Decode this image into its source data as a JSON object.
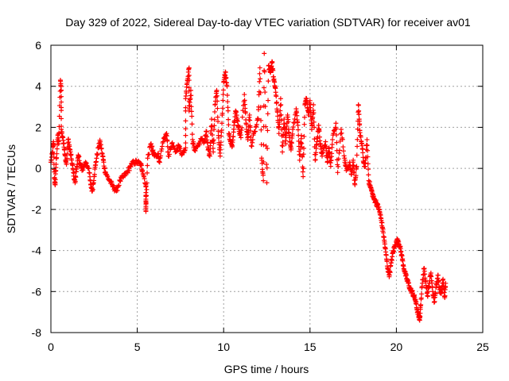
{
  "chart_data": {
    "type": "scatter",
    "title": "Day 329 of 2022, Sidereal Day-to-day VTEC variation (SDTVAR) for receiver av01",
    "xlabel": "GPS time / hours",
    "ylabel": "SDTVAR / TECUs",
    "xlim": [
      0,
      25
    ],
    "ylim": [
      -8,
      6
    ],
    "xticks": [
      0,
      5,
      10,
      15,
      20,
      25
    ],
    "yticks": [
      -8,
      -6,
      -4,
      -2,
      0,
      2,
      4,
      6
    ],
    "xtick_labels": [
      "0",
      "5",
      "10",
      "15",
      "20",
      "25"
    ],
    "ytick_labels": [
      "-8",
      "-6",
      "-4",
      "-2",
      "0",
      "2",
      "4",
      "6"
    ],
    "grid": true,
    "marker": "plus",
    "color": "#ff0000",
    "series": [
      {
        "name": "av01",
        "points": [
          [
            0.0,
            0.3
          ],
          [
            0.1,
            0.8
          ],
          [
            0.15,
            1.3
          ],
          [
            0.2,
            -0.5
          ],
          [
            0.25,
            -0.8
          ],
          [
            0.3,
            0.2
          ],
          [
            0.4,
            1.6
          ],
          [
            0.45,
            1.2
          ],
          [
            0.55,
            4.3
          ],
          [
            0.6,
            3.8
          ],
          [
            0.6,
            1.9
          ],
          [
            0.7,
            1.5
          ],
          [
            0.8,
            0.7
          ],
          [
            0.9,
            0.2
          ],
          [
            1.0,
            1.4
          ],
          [
            1.1,
            0.9
          ],
          [
            1.2,
            0.4
          ],
          [
            1.3,
            -0.2
          ],
          [
            1.4,
            -0.7
          ],
          [
            1.5,
            0.1
          ],
          [
            1.6,
            0.6
          ],
          [
            1.7,
            0.2
          ],
          [
            1.8,
            -0.1
          ],
          [
            2.0,
            0.3
          ],
          [
            2.2,
            0.0
          ],
          [
            2.3,
            -0.8
          ],
          [
            2.4,
            -1.1
          ],
          [
            2.5,
            -0.4
          ],
          [
            2.6,
            0.3
          ],
          [
            2.75,
            1.0
          ],
          [
            2.85,
            1.3
          ],
          [
            3.0,
            0.6
          ],
          [
            3.1,
            0.0
          ],
          [
            3.2,
            -0.3
          ],
          [
            3.4,
            -0.6
          ],
          [
            3.6,
            -0.9
          ],
          [
            3.8,
            -1.1
          ],
          [
            4.0,
            -0.6
          ],
          [
            4.2,
            -0.4
          ],
          [
            4.4,
            -0.2
          ],
          [
            4.6,
            0.1
          ],
          [
            4.8,
            0.3
          ],
          [
            5.0,
            0.3
          ],
          [
            5.2,
            0.2
          ],
          [
            5.3,
            -0.1
          ],
          [
            5.5,
            -0.8
          ],
          [
            5.5,
            -1.5
          ],
          [
            5.5,
            -2.1
          ],
          [
            5.6,
            0.5
          ],
          [
            5.8,
            1.2
          ],
          [
            5.9,
            0.8
          ],
          [
            6.0,
            0.6
          ],
          [
            6.2,
            0.7
          ],
          [
            6.3,
            0.3
          ],
          [
            6.5,
            1.3
          ],
          [
            6.7,
            1.7
          ],
          [
            6.8,
            0.6
          ],
          [
            7.0,
            1.2
          ],
          [
            7.2,
            0.8
          ],
          [
            7.4,
            1.1
          ],
          [
            7.6,
            0.7
          ],
          [
            7.8,
            1.0
          ],
          [
            7.8,
            3.4
          ],
          [
            7.9,
            4.3
          ],
          [
            8.0,
            4.9
          ],
          [
            8.0,
            2.8
          ],
          [
            8.1,
            3.8
          ],
          [
            8.2,
            1.4
          ],
          [
            8.3,
            0.9
          ],
          [
            8.5,
            1.1
          ],
          [
            8.7,
            1.4
          ],
          [
            8.9,
            1.3
          ],
          [
            9.0,
            1.8
          ],
          [
            9.1,
            0.9
          ],
          [
            9.2,
            0.6
          ],
          [
            9.3,
            2.4
          ],
          [
            9.4,
            0.8
          ],
          [
            9.5,
            3.1
          ],
          [
            9.6,
            3.8
          ],
          [
            9.7,
            1.6
          ],
          [
            9.8,
            0.6
          ],
          [
            9.9,
            2.2
          ],
          [
            10.0,
            4.2
          ],
          [
            10.1,
            4.7
          ],
          [
            10.2,
            4.0
          ],
          [
            10.3,
            1.7
          ],
          [
            10.4,
            1.3
          ],
          [
            10.5,
            1.1
          ],
          [
            10.6,
            2.1
          ],
          [
            10.7,
            2.8
          ],
          [
            10.8,
            2.3
          ],
          [
            10.9,
            1.8
          ],
          [
            11.0,
            1.5
          ],
          [
            11.2,
            3.6
          ],
          [
            11.3,
            2.2
          ],
          [
            11.4,
            1.4
          ],
          [
            11.5,
            2.6
          ],
          [
            11.6,
            1.1
          ],
          [
            11.8,
            1.8
          ],
          [
            12.0,
            2.4
          ],
          [
            12.1,
            4.9
          ],
          [
            12.2,
            0.5
          ],
          [
            12.3,
            -0.6
          ],
          [
            12.35,
            5.6
          ],
          [
            12.5,
            -0.7
          ],
          [
            12.6,
            5.0
          ],
          [
            12.7,
            4.7
          ],
          [
            12.8,
            5.2
          ],
          [
            12.9,
            4.3
          ],
          [
            13.0,
            3.9
          ],
          [
            13.1,
            2.8
          ],
          [
            13.2,
            1.7
          ],
          [
            13.3,
            3.4
          ],
          [
            13.4,
            0.8
          ],
          [
            13.5,
            2.4
          ],
          [
            13.6,
            1.2
          ],
          [
            13.7,
            2.6
          ],
          [
            13.8,
            1.6
          ],
          [
            13.9,
            0.9
          ],
          [
            14.0,
            1.9
          ],
          [
            14.2,
            2.9
          ],
          [
            14.3,
            2.1
          ],
          [
            14.4,
            0.4
          ],
          [
            14.5,
            1.6
          ],
          [
            14.6,
            -0.4
          ],
          [
            14.7,
            3.1
          ],
          [
            14.8,
            3.4
          ],
          [
            14.9,
            2.6
          ],
          [
            15.0,
            3.3
          ],
          [
            15.1,
            1.9
          ],
          [
            15.2,
            3.1
          ],
          [
            15.3,
            0.4
          ],
          [
            15.4,
            1.3
          ],
          [
            15.5,
            2.1
          ],
          [
            15.6,
            1.2
          ],
          [
            15.7,
            0.6
          ],
          [
            15.9,
            1.3
          ],
          [
            16.0,
            0.3
          ],
          [
            16.1,
            1.0
          ],
          [
            16.2,
            0.1
          ],
          [
            16.3,
            1.4
          ],
          [
            16.5,
            2.2
          ],
          [
            16.6,
            -0.2
          ],
          [
            16.8,
            1.9
          ],
          [
            17.0,
            0.5
          ],
          [
            17.1,
            -0.1
          ],
          [
            17.3,
            0.3
          ],
          [
            17.4,
            -0.3
          ],
          [
            17.5,
            0.4
          ],
          [
            17.6,
            -0.8
          ],
          [
            17.7,
            0.1
          ],
          [
            17.8,
            3.1
          ],
          [
            17.85,
            2.4
          ],
          [
            17.9,
            1.6
          ],
          [
            18.0,
            1.2
          ],
          [
            18.1,
            0.3
          ],
          [
            18.2,
            0.1
          ],
          [
            18.3,
            1.4
          ],
          [
            18.4,
            -0.6
          ],
          [
            18.5,
            -0.9
          ],
          [
            18.6,
            -1.2
          ],
          [
            18.7,
            -1.5
          ],
          [
            18.8,
            -1.6
          ],
          [
            18.9,
            -1.8
          ],
          [
            19.0,
            -2.0
          ],
          [
            19.1,
            -2.4
          ],
          [
            19.2,
            -2.9
          ],
          [
            19.3,
            -3.5
          ],
          [
            19.4,
            -4.2
          ],
          [
            19.5,
            -4.9
          ],
          [
            19.6,
            -5.2
          ],
          [
            19.7,
            -4.6
          ],
          [
            19.8,
            -4.1
          ],
          [
            19.9,
            -3.8
          ],
          [
            20.0,
            -3.6
          ],
          [
            20.1,
            -3.5
          ],
          [
            20.2,
            -3.8
          ],
          [
            20.3,
            -4.2
          ],
          [
            20.4,
            -4.7
          ],
          [
            20.5,
            -5.1
          ],
          [
            20.6,
            -5.4
          ],
          [
            20.7,
            -5.6
          ],
          [
            20.8,
            -5.9
          ],
          [
            20.9,
            -6.0
          ],
          [
            21.0,
            -6.2
          ],
          [
            21.1,
            -6.4
          ],
          [
            21.2,
            -6.9
          ],
          [
            21.3,
            -7.2
          ],
          [
            21.35,
            -7.4
          ],
          [
            21.4,
            -6.7
          ],
          [
            21.5,
            -5.6
          ],
          [
            21.6,
            -4.9
          ],
          [
            21.7,
            -5.5
          ],
          [
            21.8,
            -6.2
          ],
          [
            21.9,
            -5.6
          ],
          [
            22.0,
            -5.1
          ],
          [
            22.1,
            -6.0
          ],
          [
            22.2,
            -6.5
          ],
          [
            22.3,
            -5.8
          ],
          [
            22.4,
            -5.2
          ],
          [
            22.5,
            -5.9
          ],
          [
            22.6,
            -6.1
          ],
          [
            22.7,
            -5.4
          ],
          [
            22.8,
            -6.3
          ],
          [
            22.85,
            -5.6
          ]
        ]
      }
    ]
  }
}
